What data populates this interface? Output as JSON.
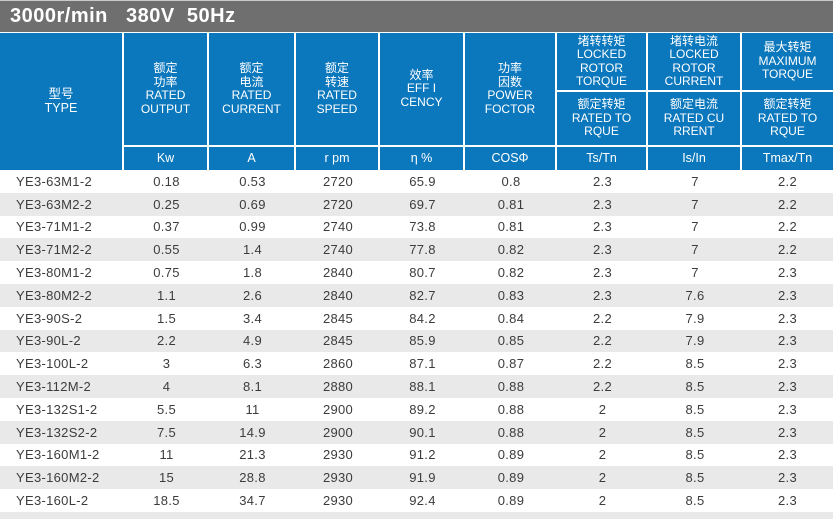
{
  "title_bar": {
    "text": "3000r/min   380V  50Hz"
  },
  "header": {
    "type": [
      "型号",
      "TYPE"
    ],
    "rated_output": [
      "额定",
      "功率",
      "RATED",
      "OUTPUT"
    ],
    "rated_current": [
      "额定",
      "电流",
      "RATED",
      "CURRENT"
    ],
    "rated_speed": [
      "额定",
      "转速",
      "RATED",
      "SPEED"
    ],
    "efficiency": [
      "效率",
      "EFF I",
      "CENCY"
    ],
    "power_factor": [
      "功率",
      "因数",
      "POWER",
      "FOCTOR"
    ],
    "locked_rotor_torque": [
      "堵转转矩",
      "LOCKED",
      "ROTOR",
      "TORQUE"
    ],
    "locked_rotor_torque_rated": [
      "额定转矩",
      "RATED TO",
      "RQUE"
    ],
    "locked_rotor_current": [
      "堵转电流",
      "LOCKED",
      "ROTOR",
      "CURRENT"
    ],
    "locked_rotor_current_rated": [
      "额定电流",
      "RATED CU",
      "RRENT"
    ],
    "maximum_torque": [
      "最大转矩",
      "MAXIMUM",
      "TORQUE"
    ],
    "maximum_torque_rated": [
      "额定转矩",
      "RATED TO",
      "RQUE"
    ]
  },
  "units": {
    "rated_output": "Kw",
    "rated_current": "A",
    "rated_speed": "r pm",
    "efficiency": "η %",
    "power_factor": "COSΦ",
    "locked_rotor_torque": "Ts/Tn",
    "locked_rotor_current": "Is/In",
    "maximum_torque": "Tmax/Tn"
  },
  "rows": [
    [
      "YE3-63M1-2",
      "0.18",
      "0.53",
      "2720",
      "65.9",
      "0.8",
      "2.3",
      "7",
      "2.2"
    ],
    [
      "YE3-63M2-2",
      "0.25",
      "0.69",
      "2720",
      "69.7",
      "0.81",
      "2.3",
      "7",
      "2.2"
    ],
    [
      "YE3-71M1-2",
      "0.37",
      "0.99",
      "2740",
      "73.8",
      "0.81",
      "2.3",
      "7",
      "2.2"
    ],
    [
      "YE3-71M2-2",
      "0.55",
      "1.4",
      "2740",
      "77.8",
      "0.82",
      "2.3",
      "7",
      "2.2"
    ],
    [
      "YE3-80M1-2",
      "0.75",
      "1.8",
      "2840",
      "80.7",
      "0.82",
      "2.3",
      "7",
      "2.3"
    ],
    [
      "YE3-80M2-2",
      "1.1",
      "2.6",
      "2840",
      "82.7",
      "0.83",
      "2.3",
      "7.6",
      "2.3"
    ],
    [
      "YE3-90S-2",
      "1.5",
      "3.4",
      "2845",
      "84.2",
      "0.84",
      "2.2",
      "7.9",
      "2.3"
    ],
    [
      "YE3-90L-2",
      "2.2",
      "4.9",
      "2845",
      "85.9",
      "0.85",
      "2.2",
      "7.9",
      "2.3"
    ],
    [
      "YE3-100L-2",
      "3",
      "6.3",
      "2860",
      "87.1",
      "0.87",
      "2.2",
      "8.5",
      "2.3"
    ],
    [
      "YE3-112M-2",
      "4",
      "8.1",
      "2880",
      "88.1",
      "0.88",
      "2.2",
      "8.5",
      "2.3"
    ],
    [
      "YE3-132S1-2",
      "5.5",
      "11",
      "2900",
      "89.2",
      "0.88",
      "2",
      "8.5",
      "2.3"
    ],
    [
      "YE3-132S2-2",
      "7.5",
      "14.9",
      "2900",
      "90.1",
      "0.88",
      "2",
      "8.5",
      "2.3"
    ],
    [
      "YE3-160M1-2",
      "11",
      "21.3",
      "2930",
      "91.2",
      "0.89",
      "2",
      "8.5",
      "2.3"
    ],
    [
      "YE3-160M2-2",
      "15",
      "28.8",
      "2930",
      "91.9",
      "0.89",
      "2",
      "8.5",
      "2.3"
    ],
    [
      "YE3-160L-2",
      "18.5",
      "34.7",
      "2930",
      "92.4",
      "0.89",
      "2",
      "8.5",
      "2.3"
    ]
  ],
  "colors": {
    "header_blue": "#0b77bc",
    "title_bar_gray": "#6f6f6f",
    "stripe_gray": "#e9e9e9",
    "text_dark": "#3c3c3c"
  }
}
